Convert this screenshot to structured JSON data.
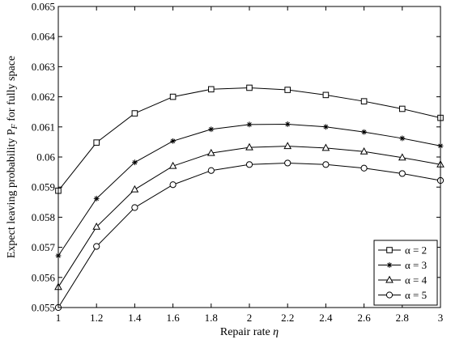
{
  "chart_data": {
    "type": "line",
    "title": "",
    "xlabel": "Repair rate η",
    "ylabel": "Expect leaving probability P_F for fully space",
    "x": [
      1,
      1.2,
      1.4,
      1.6,
      1.8,
      2,
      2.2,
      2.4,
      2.6,
      2.8,
      3
    ],
    "xlim": [
      1,
      3
    ],
    "ylim": [
      0.055,
      0.065
    ],
    "x_ticks": [
      "1",
      "1.2",
      "1.4",
      "1.6",
      "1.8",
      "2",
      "2.2",
      "2.4",
      "2.6",
      "2.8",
      "3"
    ],
    "y_ticks": [
      "0.055",
      "0.056",
      "0.057",
      "0.058",
      "0.059",
      "0.06",
      "0.061",
      "0.062",
      "0.063",
      "0.064",
      "0.065"
    ],
    "grid": false,
    "legend_position": "bottom-right",
    "series": [
      {
        "name": "α = 2",
        "marker": "square",
        "values": [
          0.05888,
          0.06048,
          0.06145,
          0.062,
          0.06225,
          0.0623,
          0.06223,
          0.06206,
          0.06185,
          0.0616,
          0.0613
        ]
      },
      {
        "name": "α = 3",
        "marker": "star",
        "values": [
          0.05672,
          0.05862,
          0.05982,
          0.06053,
          0.06092,
          0.06108,
          0.06109,
          0.061,
          0.06083,
          0.06062,
          0.06037
        ]
      },
      {
        "name": "α = 4",
        "marker": "triangle",
        "values": [
          0.05568,
          0.05768,
          0.05892,
          0.0597,
          0.06013,
          0.06032,
          0.06036,
          0.0603,
          0.06018,
          0.05998,
          0.05975
        ]
      },
      {
        "name": "α = 5",
        "marker": "circle",
        "values": [
          0.055,
          0.05703,
          0.05832,
          0.05908,
          0.05955,
          0.05975,
          0.0598,
          0.05975,
          0.05963,
          0.05945,
          0.05922
        ]
      }
    ]
  }
}
